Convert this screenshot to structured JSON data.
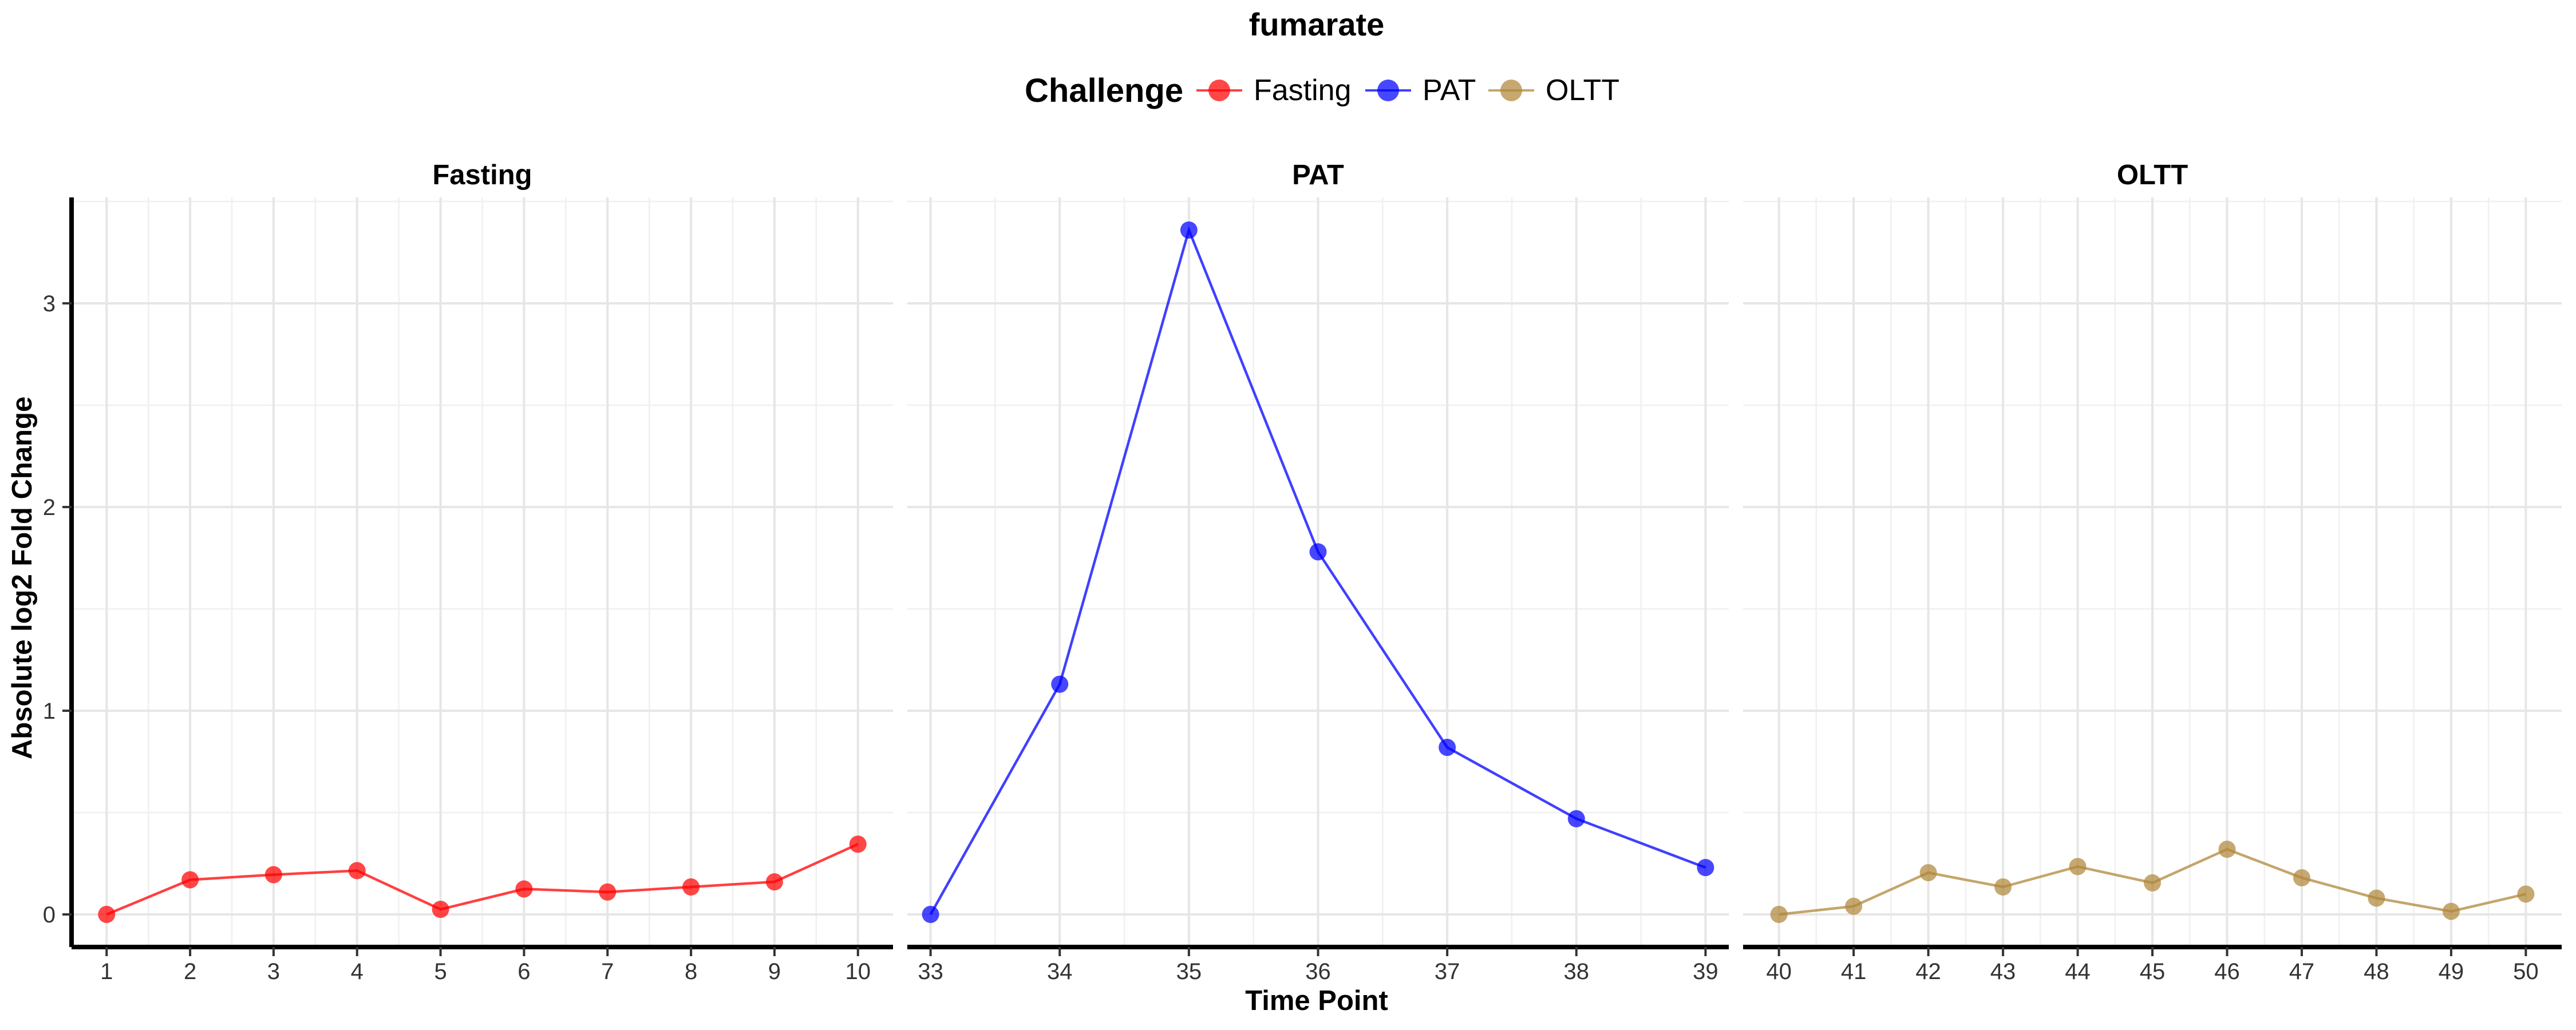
{
  "chart_data": {
    "type": "line",
    "title": "fumarate",
    "xlabel": "Time Point",
    "ylabel": "Absolute log2 Fold Change",
    "ylim": [
      -0.16,
      3.52
    ],
    "y_ticks": [
      0,
      1,
      2,
      3
    ],
    "grid": true,
    "legend": {
      "title": "Challenge",
      "placement": "top",
      "entries": [
        "Fasting",
        "PAT",
        "OLTT"
      ]
    },
    "panels": [
      {
        "title": "Fasting",
        "series_name": "Fasting",
        "color": "#ff0000",
        "xlim": [
          0.58,
          10.42
        ],
        "x": [
          1,
          2,
          3,
          4,
          5,
          6,
          7,
          8,
          9,
          10
        ],
        "y": [
          0.0,
          0.17,
          0.195,
          0.215,
          0.025,
          0.125,
          0.11,
          0.135,
          0.16,
          0.345
        ]
      },
      {
        "title": "PAT",
        "series_name": "PAT",
        "color": "#0000ff",
        "xlim": [
          32.82,
          39.18
        ],
        "x": [
          33,
          34,
          35,
          36,
          37,
          38,
          39
        ],
        "y": [
          0.0,
          1.13,
          3.36,
          1.78,
          0.82,
          0.47,
          0.23
        ]
      },
      {
        "title": "OLTT",
        "series_name": "OLTT",
        "color": "#b0873a",
        "xlim": [
          39.52,
          50.48
        ],
        "x": [
          40,
          41,
          42,
          43,
          44,
          45,
          46,
          47,
          48,
          49,
          50
        ],
        "y": [
          0.0,
          0.04,
          0.205,
          0.135,
          0.235,
          0.155,
          0.32,
          0.18,
          0.08,
          0.015,
          0.1
        ]
      }
    ]
  }
}
